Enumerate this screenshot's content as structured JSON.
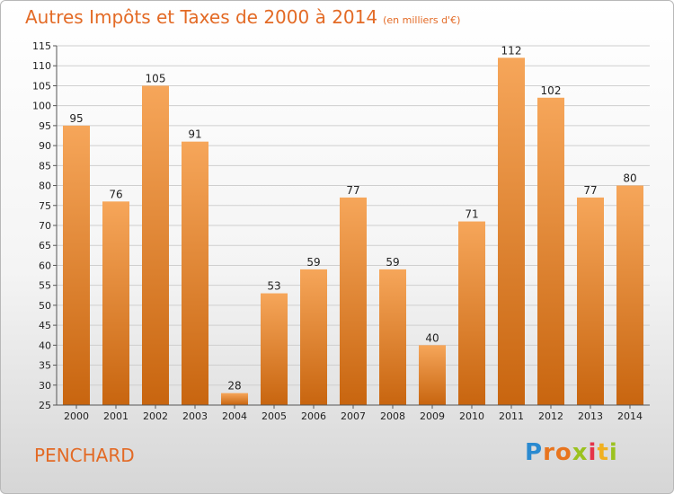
{
  "header": {
    "title": "Autres Impôts et Taxes de 2000 à 2014",
    "unit": "(en milliers d'€)"
  },
  "commune": "PENCHARD",
  "logo": {
    "letters": [
      "P",
      "r",
      "o",
      "x",
      "i",
      "t",
      "i"
    ],
    "colors": [
      "#2a8ad0",
      "#e8741e",
      "#e8741e",
      "#9bc21f",
      "#e5344a",
      "#f0b020",
      "#9bc21f"
    ]
  },
  "colors": {
    "title": "#e36a25",
    "bar_top": "#f6a65a",
    "bar_bottom": "#c8650f",
    "grid": "#cfcfcf"
  },
  "chart_data": {
    "type": "bar",
    "title": "Autres Impôts et Taxes de 2000 à 2014",
    "subtitle": "(en milliers d'€)",
    "categories": [
      "2000",
      "2001",
      "2002",
      "2003",
      "2004",
      "2005",
      "2006",
      "2007",
      "2008",
      "2009",
      "2010",
      "2011",
      "2012",
      "2013",
      "2014"
    ],
    "values": [
      95,
      76,
      105,
      91,
      28,
      53,
      59,
      77,
      59,
      40,
      71,
      112,
      102,
      77,
      80
    ],
    "ylim": [
      25,
      115
    ],
    "yticks": [
      25,
      30,
      35,
      40,
      45,
      50,
      55,
      60,
      65,
      70,
      75,
      80,
      85,
      90,
      95,
      100,
      105,
      110,
      115
    ],
    "grid": true,
    "xlabel": "",
    "ylabel": ""
  }
}
